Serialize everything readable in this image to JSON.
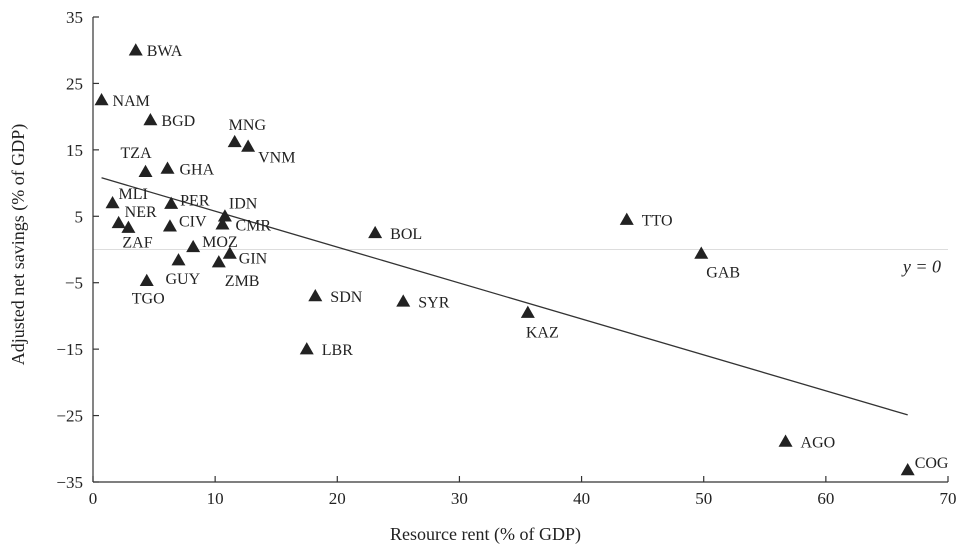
{
  "chart_data": {
    "type": "scatter",
    "xlabel": "Resource rent (% of GDP)",
    "ylabel": "Adjusted net savings (% of GDP)",
    "xlim": [
      0,
      70
    ],
    "ylim": [
      -35,
      35
    ],
    "xticks": [
      0,
      10,
      20,
      30,
      40,
      50,
      60,
      70
    ],
    "yticks": [
      35,
      25,
      15,
      5,
      -5,
      -15,
      -25,
      -35
    ],
    "grid": false,
    "reference_line": {
      "y": 0,
      "label": "y = 0"
    },
    "trend_line": {
      "x1": 0.7,
      "y1": 10.8,
      "x2": 66.7,
      "y2": -24.9
    },
    "points": [
      {
        "label": "BWA",
        "x": 3.5,
        "y": 30.0
      },
      {
        "label": "NAM",
        "x": 0.7,
        "y": 22.5
      },
      {
        "label": "BGD",
        "x": 4.7,
        "y": 19.5
      },
      {
        "label": "MNG",
        "x": 11.6,
        "y": 16.2
      },
      {
        "label": "VNM",
        "x": 12.7,
        "y": 15.5
      },
      {
        "label": "TZA",
        "x": 4.3,
        "y": 11.7
      },
      {
        "label": "GHA",
        "x": 6.1,
        "y": 12.2
      },
      {
        "label": "MLI",
        "x": 1.6,
        "y": 7.0
      },
      {
        "label": "PER",
        "x": 6.4,
        "y": 6.9
      },
      {
        "label": "IDN",
        "x": 10.8,
        "y": 5.0
      },
      {
        "label": "NER",
        "x": 2.1,
        "y": 4.0
      },
      {
        "label": "CIV",
        "x": 6.3,
        "y": 3.5
      },
      {
        "label": "CMR",
        "x": 10.6,
        "y": 3.8
      },
      {
        "label": "ZAF",
        "x": 2.9,
        "y": 3.3
      },
      {
        "label": "MOZ",
        "x": 8.2,
        "y": 0.4
      },
      {
        "label": "GIN",
        "x": 11.2,
        "y": -0.6
      },
      {
        "label": "GUY",
        "x": 7.0,
        "y": -1.6
      },
      {
        "label": "ZMB",
        "x": 10.3,
        "y": -1.9
      },
      {
        "label": "TGO",
        "x": 4.4,
        "y": -4.7
      },
      {
        "label": "BOL",
        "x": 23.1,
        "y": 2.5
      },
      {
        "label": "SDN",
        "x": 18.2,
        "y": -7.0
      },
      {
        "label": "SYR",
        "x": 25.4,
        "y": -7.8
      },
      {
        "label": "LBR",
        "x": 17.5,
        "y": -15.0
      },
      {
        "label": "KAZ",
        "x": 35.6,
        "y": -9.5
      },
      {
        "label": "TTO",
        "x": 43.7,
        "y": 4.5
      },
      {
        "label": "GAB",
        "x": 49.8,
        "y": -0.6
      },
      {
        "label": "AGO",
        "x": 56.7,
        "y": -28.9
      },
      {
        "label": "COG",
        "x": 66.7,
        "y": -33.2
      }
    ]
  }
}
